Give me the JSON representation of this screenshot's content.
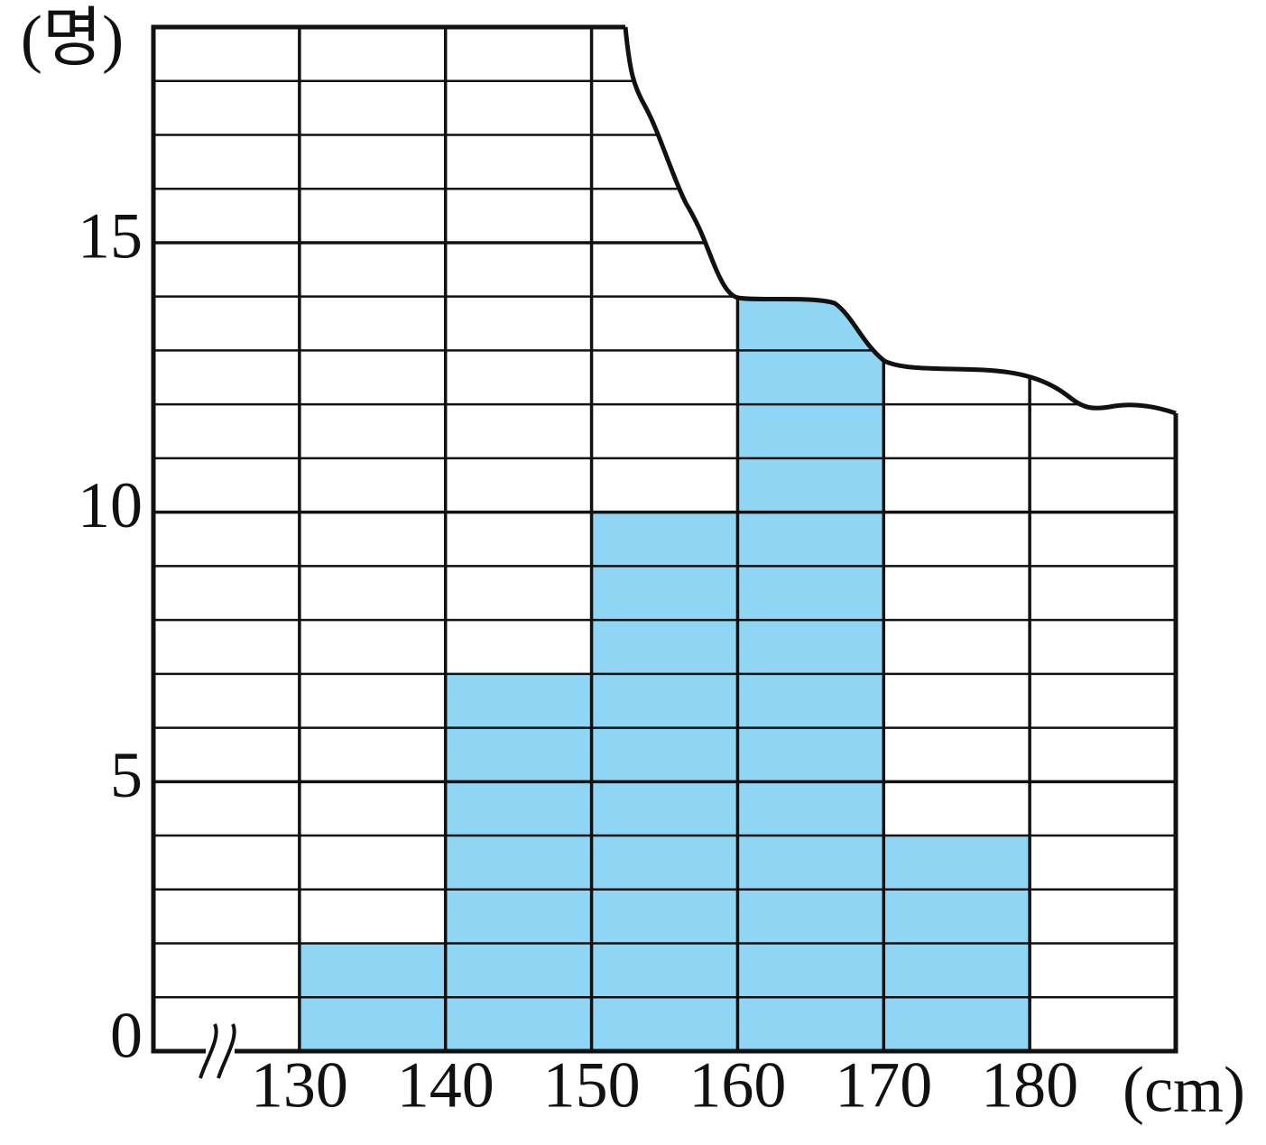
{
  "chart_data": {
    "type": "histogram",
    "y_label": "(명)",
    "x_label": "(cm)",
    "bins": [
      130,
      140,
      150,
      160,
      170,
      180
    ],
    "values": [
      2,
      7,
      10,
      14,
      4
    ],
    "color": "#8fd6f5",
    "xlim": [
      120,
      190
    ],
    "xticks": [
      130,
      140,
      150,
      160,
      170,
      180
    ],
    "ylim": [
      0,
      19
    ],
    "yticks": [
      0,
      5,
      10,
      15
    ],
    "grid": true
  }
}
